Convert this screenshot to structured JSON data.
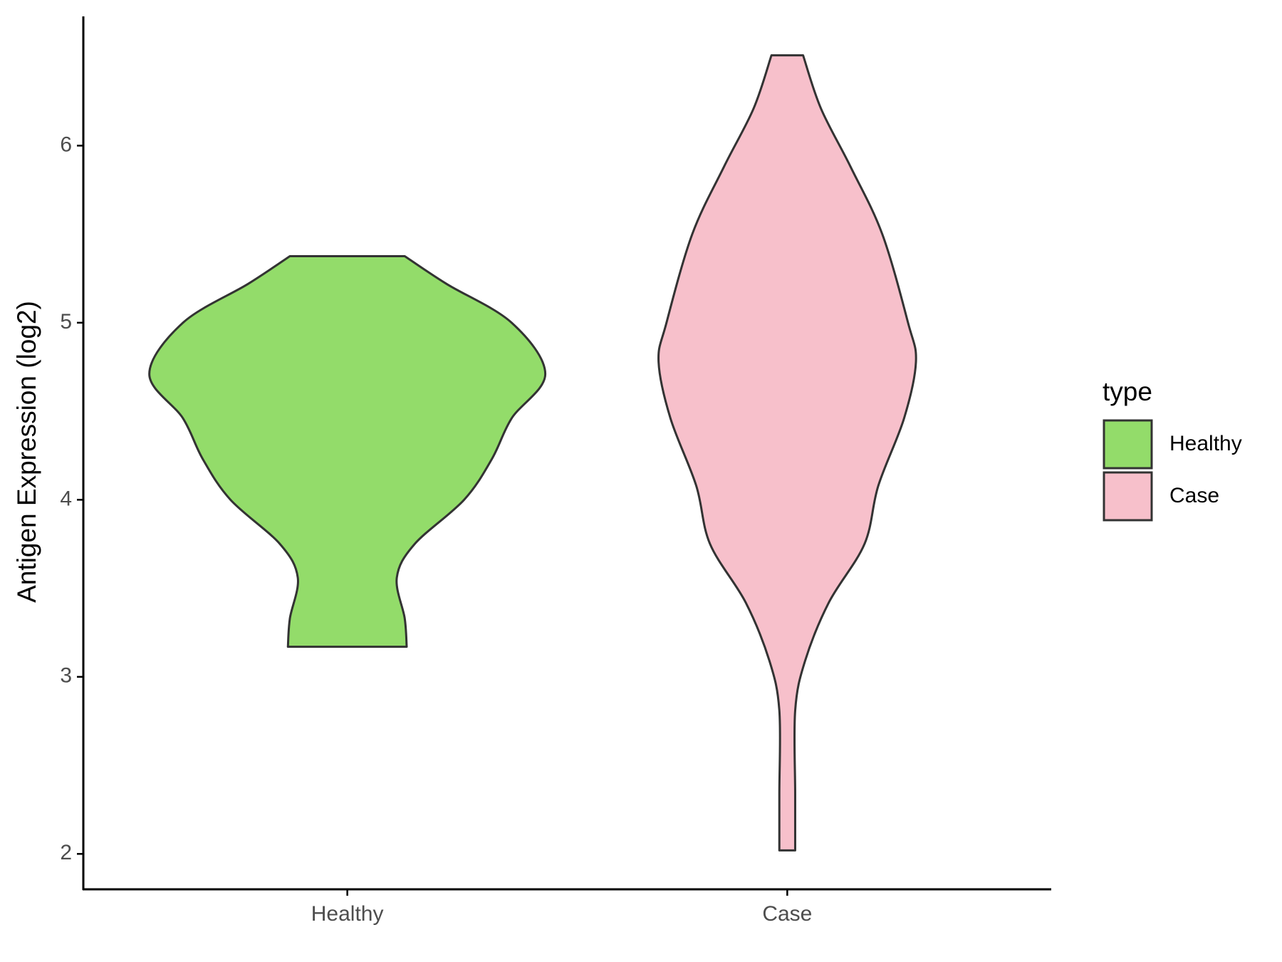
{
  "chart_data": {
    "type": "violin",
    "y_label": "Antigen Expression (log2)",
    "categories": [
      "Healthy",
      "Case"
    ],
    "ylim": [
      1.8,
      6.73
    ],
    "yticks": [
      2,
      3,
      4,
      5,
      6
    ],
    "legend_title": "type",
    "legend_position": "right",
    "series": [
      {
        "name": "Healthy",
        "color": "#93dc6a",
        "y": [
          5.376,
          5.22,
          5.0,
          4.71,
          4.46,
          4.23,
          4.0,
          3.75,
          3.56,
          3.33,
          3.17
        ],
        "density": [
          0.29,
          0.5,
          0.83,
          1,
          0.83,
          0.73,
          0.59,
          0.34,
          0.25,
          0.29,
          0.3
        ]
      },
      {
        "name": "Case",
        "color": "#f7c0cb",
        "y": [
          6.51,
          6.21,
          5.88,
          5.5,
          5.0,
          4.78,
          4.46,
          4.08,
          3.75,
          3.42,
          3.09,
          2.81,
          2.34,
          2.02
        ],
        "density": [
          0.08,
          0.17,
          0.32,
          0.48,
          0.61,
          0.65,
          0.59,
          0.46,
          0.39,
          0.21,
          0.09,
          0.04,
          0.04,
          0.04
        ]
      }
    ]
  }
}
